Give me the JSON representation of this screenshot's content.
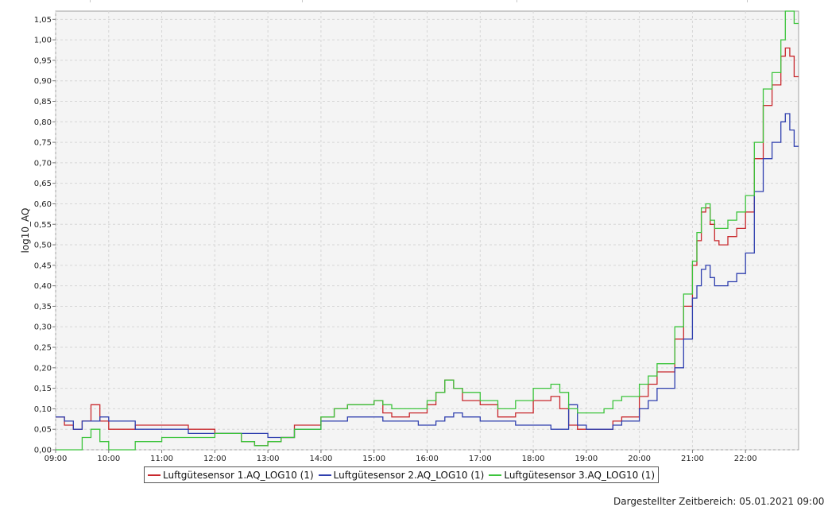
{
  "chart_data": {
    "type": "line",
    "step": true,
    "xlabel": "",
    "ylabel": "log10_AQ",
    "xlim": [
      "09:00",
      "23:00"
    ],
    "ylim": [
      0.0,
      1.07
    ],
    "x_ticks": [
      "09:00",
      "10:00",
      "11:00",
      "12:00",
      "13:00",
      "14:00",
      "15:00",
      "16:00",
      "17:00",
      "18:00",
      "19:00",
      "20:00",
      "21:00",
      "22:00"
    ],
    "y_ticks": [
      "0,00",
      "0,05",
      "0,10",
      "0,15",
      "0,20",
      "0,25",
      "0,30",
      "0,35",
      "0,40",
      "0,45",
      "0,50",
      "0,55",
      "0,60",
      "0,65",
      "0,70",
      "0,75",
      "0,80",
      "0,85",
      "0,90",
      "0,95",
      "1,00",
      "1,05"
    ],
    "grid": true,
    "legend_position": "bottom",
    "series": [
      {
        "name": "Luftgütesensor 1.AQ_LOG10 (1)",
        "color": "#c8282d",
        "points": [
          [
            "09:00",
            0.08
          ],
          [
            "09:10",
            0.06
          ],
          [
            "09:20",
            0.05
          ],
          [
            "09:30",
            0.07
          ],
          [
            "09:40",
            0.11
          ],
          [
            "09:50",
            0.07
          ],
          [
            "10:00",
            0.05
          ],
          [
            "10:30",
            0.06
          ],
          [
            "11:00",
            0.06
          ],
          [
            "11:30",
            0.05
          ],
          [
            "12:00",
            0.04
          ],
          [
            "12:30",
            0.02
          ],
          [
            "12:45",
            0.01
          ],
          [
            "13:00",
            0.02
          ],
          [
            "13:15",
            0.03
          ],
          [
            "13:30",
            0.06
          ],
          [
            "14:00",
            0.08
          ],
          [
            "14:15",
            0.1
          ],
          [
            "14:30",
            0.11
          ],
          [
            "15:00",
            0.12
          ],
          [
            "15:10",
            0.09
          ],
          [
            "15:20",
            0.08
          ],
          [
            "15:40",
            0.09
          ],
          [
            "16:00",
            0.11
          ],
          [
            "16:10",
            0.14
          ],
          [
            "16:20",
            0.17
          ],
          [
            "16:30",
            0.15
          ],
          [
            "16:40",
            0.12
          ],
          [
            "17:00",
            0.11
          ],
          [
            "17:20",
            0.08
          ],
          [
            "17:40",
            0.09
          ],
          [
            "18:00",
            0.12
          ],
          [
            "18:20",
            0.13
          ],
          [
            "18:30",
            0.1
          ],
          [
            "18:40",
            0.06
          ],
          [
            "18:50",
            0.05
          ],
          [
            "19:00",
            0.05
          ],
          [
            "19:20",
            0.05
          ],
          [
            "19:30",
            0.07
          ],
          [
            "19:40",
            0.08
          ],
          [
            "20:00",
            0.13
          ],
          [
            "20:10",
            0.16
          ],
          [
            "20:20",
            0.19
          ],
          [
            "20:40",
            0.27
          ],
          [
            "20:50",
            0.35
          ],
          [
            "21:00",
            0.45
          ],
          [
            "21:05",
            0.51
          ],
          [
            "21:10",
            0.58
          ],
          [
            "21:15",
            0.59
          ],
          [
            "21:20",
            0.55
          ],
          [
            "21:25",
            0.51
          ],
          [
            "21:30",
            0.5
          ],
          [
            "21:40",
            0.52
          ],
          [
            "21:50",
            0.54
          ],
          [
            "22:00",
            0.58
          ],
          [
            "22:10",
            0.71
          ],
          [
            "22:20",
            0.84
          ],
          [
            "22:30",
            0.89
          ],
          [
            "22:40",
            0.96
          ],
          [
            "22:45",
            0.98
          ],
          [
            "22:50",
            0.96
          ],
          [
            "22:55",
            0.91
          ]
        ]
      },
      {
        "name": "Luftgütesensor 2.AQ_LOG10 (1)",
        "color": "#2f3fae",
        "points": [
          [
            "09:00",
            0.08
          ],
          [
            "09:10",
            0.07
          ],
          [
            "09:20",
            0.05
          ],
          [
            "09:30",
            0.07
          ],
          [
            "09:40",
            0.07
          ],
          [
            "09:50",
            0.08
          ],
          [
            "10:00",
            0.07
          ],
          [
            "10:30",
            0.05
          ],
          [
            "11:00",
            0.05
          ],
          [
            "11:30",
            0.04
          ],
          [
            "12:00",
            0.04
          ],
          [
            "12:30",
            0.04
          ],
          [
            "13:00",
            0.03
          ],
          [
            "13:15",
            0.03
          ],
          [
            "13:30",
            0.05
          ],
          [
            "14:00",
            0.07
          ],
          [
            "14:30",
            0.08
          ],
          [
            "15:00",
            0.08
          ],
          [
            "15:10",
            0.07
          ],
          [
            "15:20",
            0.07
          ],
          [
            "15:40",
            0.07
          ],
          [
            "15:50",
            0.06
          ],
          [
            "16:00",
            0.06
          ],
          [
            "16:10",
            0.07
          ],
          [
            "16:20",
            0.08
          ],
          [
            "16:30",
            0.09
          ],
          [
            "16:40",
            0.08
          ],
          [
            "17:00",
            0.07
          ],
          [
            "17:20",
            0.07
          ],
          [
            "17:40",
            0.06
          ],
          [
            "18:00",
            0.06
          ],
          [
            "18:20",
            0.05
          ],
          [
            "18:30",
            0.05
          ],
          [
            "18:40",
            0.11
          ],
          [
            "18:50",
            0.06
          ],
          [
            "19:00",
            0.05
          ],
          [
            "19:20",
            0.05
          ],
          [
            "19:30",
            0.06
          ],
          [
            "19:40",
            0.07
          ],
          [
            "20:00",
            0.1
          ],
          [
            "20:10",
            0.12
          ],
          [
            "20:20",
            0.15
          ],
          [
            "20:40",
            0.2
          ],
          [
            "20:50",
            0.27
          ],
          [
            "21:00",
            0.37
          ],
          [
            "21:05",
            0.4
          ],
          [
            "21:10",
            0.44
          ],
          [
            "21:15",
            0.45
          ],
          [
            "21:20",
            0.42
          ],
          [
            "21:25",
            0.4
          ],
          [
            "21:30",
            0.4
          ],
          [
            "21:40",
            0.41
          ],
          [
            "21:50",
            0.43
          ],
          [
            "22:00",
            0.48
          ],
          [
            "22:10",
            0.63
          ],
          [
            "22:20",
            0.71
          ],
          [
            "22:30",
            0.75
          ],
          [
            "22:40",
            0.8
          ],
          [
            "22:45",
            0.82
          ],
          [
            "22:50",
            0.78
          ],
          [
            "22:55",
            0.74
          ]
        ]
      },
      {
        "name": "Luftgütesensor 3.AQ_LOG10 (1)",
        "color": "#3cc43c",
        "points": [
          [
            "09:00",
            0.0
          ],
          [
            "09:10",
            0.0
          ],
          [
            "09:20",
            0.0
          ],
          [
            "09:30",
            0.03
          ],
          [
            "09:40",
            0.05
          ],
          [
            "09:50",
            0.02
          ],
          [
            "10:00",
            0.0
          ],
          [
            "10:30",
            0.02
          ],
          [
            "11:00",
            0.03
          ],
          [
            "11:30",
            0.03
          ],
          [
            "12:00",
            0.04
          ],
          [
            "12:30",
            0.02
          ],
          [
            "12:45",
            0.01
          ],
          [
            "13:00",
            0.02
          ],
          [
            "13:15",
            0.03
          ],
          [
            "13:30",
            0.05
          ],
          [
            "14:00",
            0.08
          ],
          [
            "14:15",
            0.1
          ],
          [
            "14:30",
            0.11
          ],
          [
            "15:00",
            0.12
          ],
          [
            "15:10",
            0.11
          ],
          [
            "15:20",
            0.1
          ],
          [
            "15:40",
            0.1
          ],
          [
            "16:00",
            0.12
          ],
          [
            "16:10",
            0.14
          ],
          [
            "16:20",
            0.17
          ],
          [
            "16:30",
            0.15
          ],
          [
            "16:40",
            0.14
          ],
          [
            "17:00",
            0.12
          ],
          [
            "17:20",
            0.1
          ],
          [
            "17:40",
            0.12
          ],
          [
            "18:00",
            0.15
          ],
          [
            "18:20",
            0.16
          ],
          [
            "18:30",
            0.14
          ],
          [
            "18:40",
            0.1
          ],
          [
            "18:50",
            0.09
          ],
          [
            "19:00",
            0.09
          ],
          [
            "19:20",
            0.1
          ],
          [
            "19:30",
            0.12
          ],
          [
            "19:40",
            0.13
          ],
          [
            "20:00",
            0.16
          ],
          [
            "20:10",
            0.18
          ],
          [
            "20:20",
            0.21
          ],
          [
            "20:40",
            0.3
          ],
          [
            "20:50",
            0.38
          ],
          [
            "21:00",
            0.46
          ],
          [
            "21:05",
            0.53
          ],
          [
            "21:10",
            0.59
          ],
          [
            "21:15",
            0.6
          ],
          [
            "21:20",
            0.56
          ],
          [
            "21:25",
            0.54
          ],
          [
            "21:30",
            0.54
          ],
          [
            "21:40",
            0.56
          ],
          [
            "21:50",
            0.58
          ],
          [
            "22:00",
            0.62
          ],
          [
            "22:10",
            0.75
          ],
          [
            "22:20",
            0.88
          ],
          [
            "22:30",
            0.92
          ],
          [
            "22:40",
            1.0
          ],
          [
            "22:45",
            1.07
          ],
          [
            "22:50",
            1.07
          ],
          [
            "22:55",
            1.04
          ]
        ]
      }
    ]
  },
  "footer": {
    "text": "Dargestellter Zeitbereich: 05.01.2021 09:00"
  }
}
